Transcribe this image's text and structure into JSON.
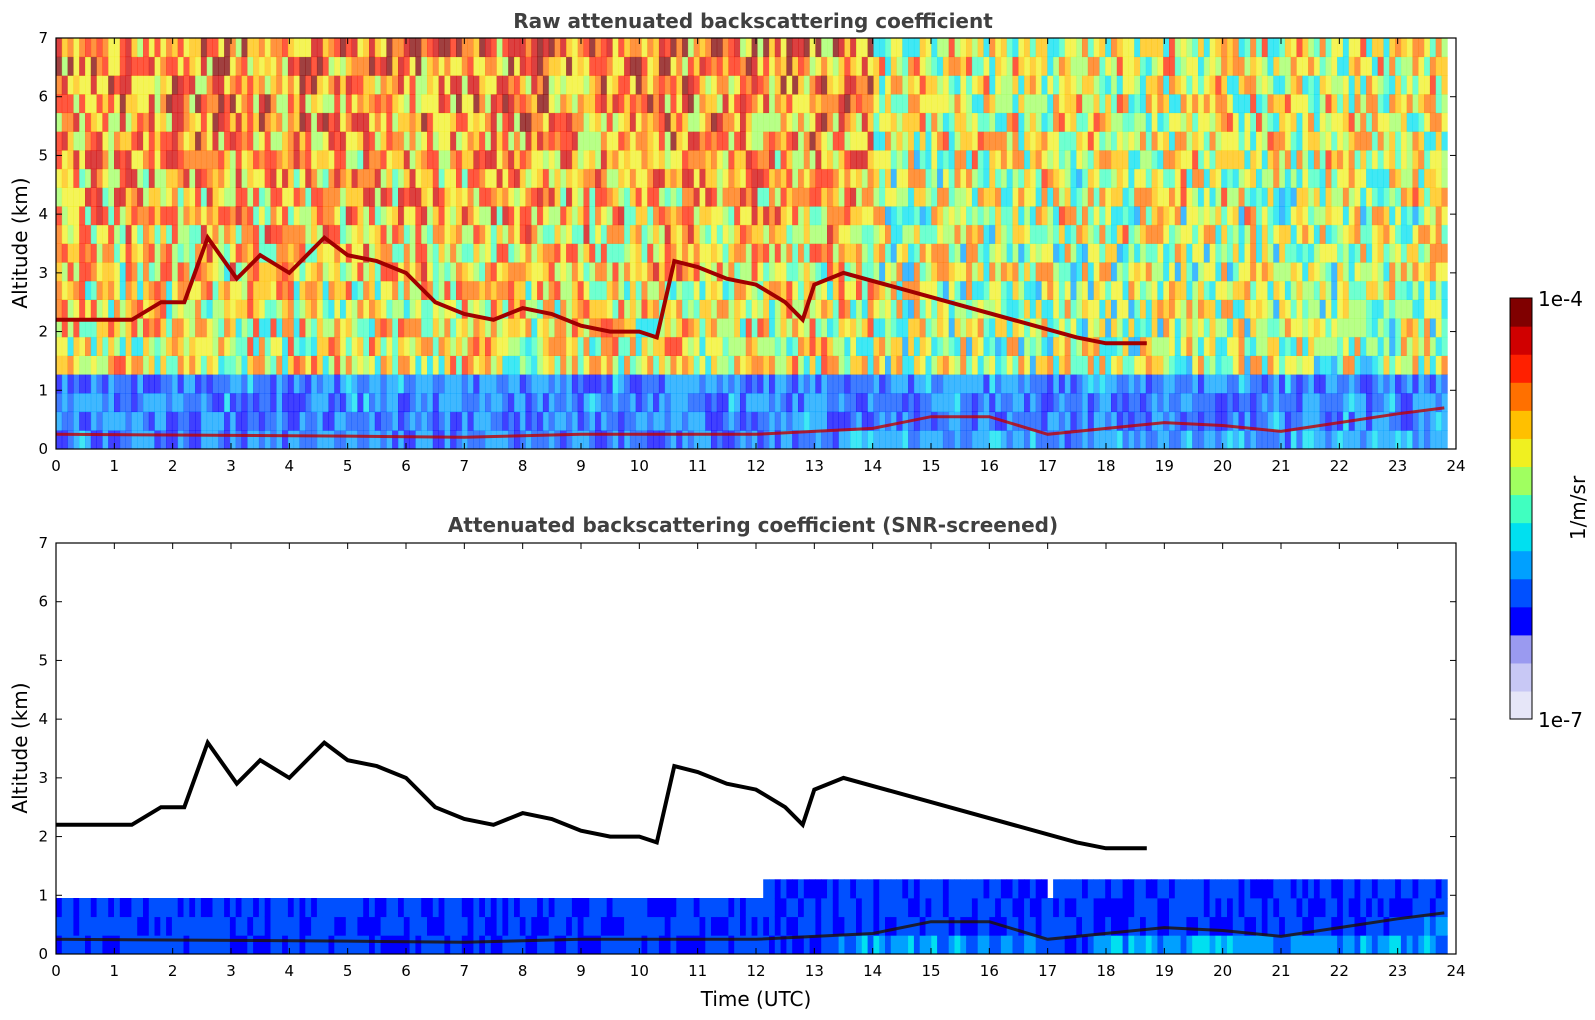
{
  "chart_data": [
    {
      "type": "heatmap",
      "title": "Raw attenuated backscattering coefficient",
      "xlabel": "",
      "ylabel": "Altitude (km)",
      "xlim": [
        0,
        24
      ],
      "ylim": [
        0,
        7
      ],
      "x_ticks": [
        "0",
        "1",
        "2",
        "3",
        "4",
        "5",
        "6",
        "7",
        "8",
        "9",
        "10",
        "11",
        "12",
        "13",
        "14",
        "15",
        "16",
        "17",
        "18",
        "19",
        "20",
        "21",
        "22",
        "23",
        "24"
      ],
      "y_ticks": [
        "0",
        "1",
        "2",
        "3",
        "4",
        "5",
        "6",
        "7"
      ],
      "screened": false,
      "cloud_layer": [
        [
          0,
          2.2
        ],
        [
          1.3,
          2.2
        ],
        [
          1.8,
          2.5
        ],
        [
          2.2,
          2.5
        ],
        [
          2.6,
          3.6
        ],
        [
          3.1,
          2.9
        ],
        [
          3.5,
          3.3
        ],
        [
          4.0,
          3.0
        ],
        [
          4.6,
          3.6
        ],
        [
          5.0,
          3.3
        ],
        [
          5.5,
          3.2
        ],
        [
          6.0,
          3.0
        ],
        [
          6.5,
          2.5
        ],
        [
          7.0,
          2.3
        ],
        [
          7.5,
          2.2
        ],
        [
          8.0,
          2.4
        ],
        [
          8.5,
          2.3
        ],
        [
          9.0,
          2.1
        ],
        [
          9.5,
          2.0
        ],
        [
          10.0,
          2.0
        ],
        [
          10.3,
          1.9
        ],
        [
          10.6,
          3.2
        ],
        [
          11.0,
          3.1
        ],
        [
          11.5,
          2.9
        ],
        [
          12.0,
          2.8
        ],
        [
          12.5,
          2.5
        ],
        [
          12.8,
          2.2
        ],
        [
          13.0,
          2.8
        ],
        [
          13.5,
          3.0
        ],
        [
          17.5,
          1.9
        ],
        [
          18.0,
          1.8
        ],
        [
          18.7,
          1.8
        ]
      ],
      "boundary_layer": [
        [
          0,
          0.25
        ],
        [
          5,
          0.22
        ],
        [
          7,
          0.2
        ],
        [
          9,
          0.25
        ],
        [
          10.5,
          0.25
        ],
        [
          12,
          0.25
        ],
        [
          14,
          0.35
        ],
        [
          15,
          0.55
        ],
        [
          16,
          0.55
        ],
        [
          17,
          0.25
        ],
        [
          19,
          0.45
        ],
        [
          20,
          0.4
        ],
        [
          21,
          0.3
        ],
        [
          22,
          0.45
        ],
        [
          23,
          0.6
        ],
        [
          23.8,
          0.7
        ]
      ]
    },
    {
      "type": "heatmap",
      "title": "Attenuated backscattering coefficient (SNR-screened)",
      "xlabel": "Time (UTC)",
      "ylabel": "Altitude (km)",
      "xlim": [
        0,
        24
      ],
      "ylim": [
        0,
        7
      ],
      "x_ticks": [
        "0",
        "1",
        "2",
        "3",
        "4",
        "5",
        "6",
        "7",
        "8",
        "9",
        "10",
        "11",
        "12",
        "13",
        "14",
        "15",
        "16",
        "17",
        "18",
        "19",
        "20",
        "21",
        "22",
        "23",
        "24"
      ],
      "y_ticks": [
        "0",
        "1",
        "2",
        "3",
        "4",
        "5",
        "6",
        "7"
      ],
      "screened": true
    }
  ],
  "colorbar": {
    "label": "1/m/sr",
    "max_label": "1e-4",
    "min_label": "1e-7",
    "colors": [
      "#e6e6f8",
      "#c8c8f5",
      "#9a9af0",
      "#0000ff",
      "#0050ff",
      "#00a0ff",
      "#00e0f0",
      "#40ffc0",
      "#a0ff60",
      "#f0f020",
      "#ffc000",
      "#ff7000",
      "#ff2000",
      "#d00000",
      "#800000"
    ]
  }
}
